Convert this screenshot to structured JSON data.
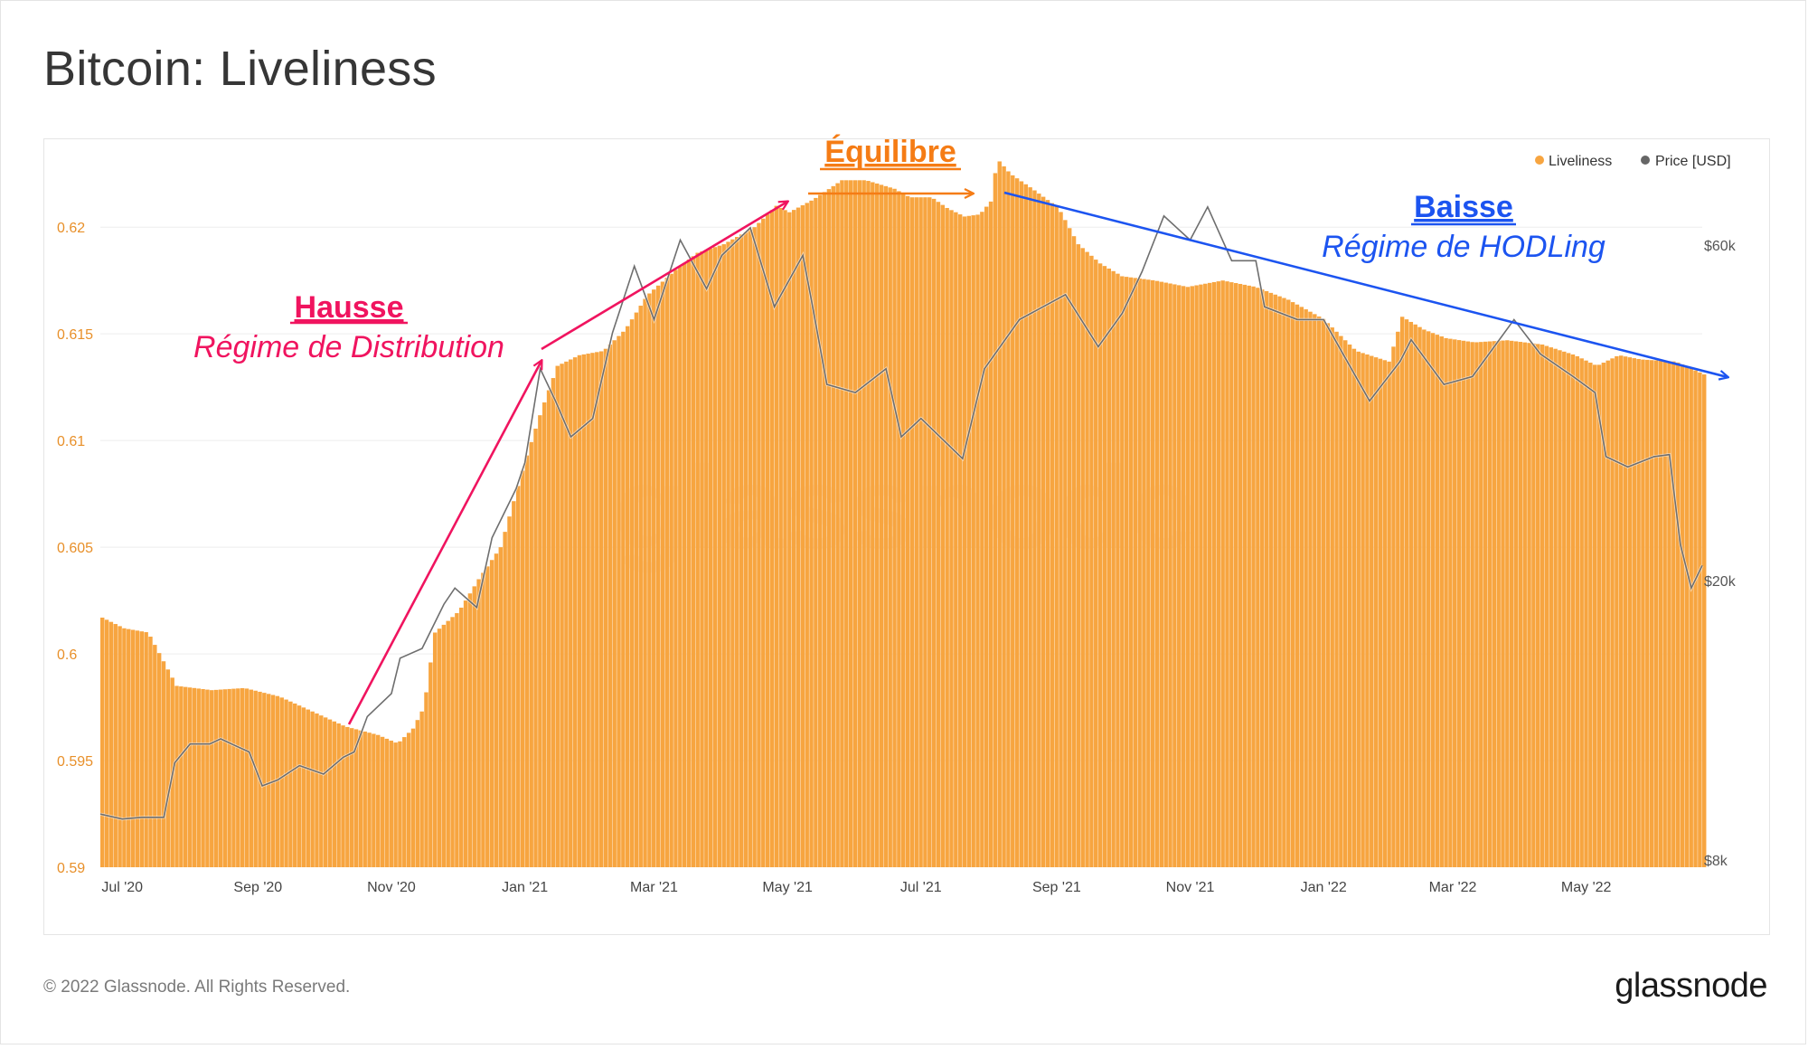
{
  "title": "Bitcoin: Liveliness",
  "footer": {
    "copyright": "© 2022 Glassnode. All Rights Reserved.",
    "logo": "glassnode"
  },
  "watermark": "glassnode",
  "chart_data": {
    "type": "bar",
    "title": "Bitcoin: Liveliness",
    "x_axis": {
      "start": "2020-06-21",
      "end": "2022-06-23",
      "tick_labels": [
        "Jul '20",
        "Sep '20",
        "Nov '20",
        "Jan '21",
        "Mar '21",
        "May '21",
        "Jul '21",
        "Sep '21",
        "Nov '21",
        "Jan '22",
        "Mar '22",
        "May '22"
      ]
    },
    "y_left": {
      "range": [
        0.59,
        0.6234
      ],
      "ticks": [
        0.59,
        0.595,
        0.6,
        0.605,
        0.61,
        0.615,
        0.62
      ],
      "tick_labels": [
        "0.59",
        "0.595",
        "0.6",
        "0.605",
        "0.61",
        "0.615",
        "0.62"
      ],
      "color": "#e8902a"
    },
    "y_right": {
      "scale": "log",
      "ticks": [
        8000,
        20000,
        60000
      ],
      "tick_labels": [
        "$8k",
        "$20k",
        "$60k"
      ]
    },
    "legend": {
      "position": "top-right",
      "items": [
        {
          "label": "Liveliness",
          "color": "#f7a540"
        },
        {
          "label": "Price [USD]",
          "color": "#666666"
        }
      ]
    },
    "series": [
      {
        "name": "Liveliness",
        "kind": "bar",
        "color": "#f7a540",
        "points": [
          [
            "2020-06-21",
            0.6017
          ],
          [
            "2020-07-01",
            0.6012
          ],
          [
            "2020-07-12",
            0.601
          ],
          [
            "2020-07-25",
            0.5985
          ],
          [
            "2020-08-10",
            0.5983
          ],
          [
            "2020-08-25",
            0.5984
          ],
          [
            "2020-09-10",
            0.598
          ],
          [
            "2020-09-25",
            0.5973
          ],
          [
            "2020-10-10",
            0.5966
          ],
          [
            "2020-10-25",
            0.5962
          ],
          [
            "2020-11-03",
            0.5958
          ],
          [
            "2020-11-10",
            0.5965
          ],
          [
            "2020-11-15",
            0.5975
          ],
          [
            "2020-11-20",
            0.601
          ],
          [
            "2020-12-01",
            0.602
          ],
          [
            "2020-12-10",
            0.6035
          ],
          [
            "2020-12-20",
            0.605
          ],
          [
            "2020-12-25",
            0.6068
          ],
          [
            "2021-01-01",
            0.6093
          ],
          [
            "2021-01-08",
            0.6115
          ],
          [
            "2021-01-15",
            0.6135
          ],
          [
            "2021-01-25",
            0.614
          ],
          [
            "2021-02-05",
            0.6142
          ],
          [
            "2021-02-15",
            0.6152
          ],
          [
            "2021-02-25",
            0.6168
          ],
          [
            "2021-03-10",
            0.618
          ],
          [
            "2021-03-20",
            0.6188
          ],
          [
            "2021-04-01",
            0.6192
          ],
          [
            "2021-04-15",
            0.62
          ],
          [
            "2021-04-25",
            0.621
          ],
          [
            "2021-05-01",
            0.6207
          ],
          [
            "2021-05-12",
            0.6213
          ],
          [
            "2021-05-25",
            0.6222
          ],
          [
            "2021-06-05",
            0.6222
          ],
          [
            "2021-06-18",
            0.6218
          ],
          [
            "2021-06-25",
            0.6214
          ],
          [
            "2021-07-05",
            0.6214
          ],
          [
            "2021-07-12",
            0.6209
          ],
          [
            "2021-07-20",
            0.6205
          ],
          [
            "2021-07-27",
            0.6206
          ],
          [
            "2021-08-01",
            0.6212
          ],
          [
            "2021-08-04",
            0.6232
          ],
          [
            "2021-08-10",
            0.6225
          ],
          [
            "2021-08-20",
            0.6218
          ],
          [
            "2021-09-01",
            0.6209
          ],
          [
            "2021-09-10",
            0.6192
          ],
          [
            "2021-09-20",
            0.6183
          ],
          [
            "2021-09-30",
            0.6177
          ],
          [
            "2021-10-15",
            0.6175
          ],
          [
            "2021-10-30",
            0.6172
          ],
          [
            "2021-11-15",
            0.6175
          ],
          [
            "2021-11-30",
            0.6172
          ],
          [
            "2021-12-15",
            0.6166
          ],
          [
            "2021-12-31",
            0.6157
          ],
          [
            "2022-01-15",
            0.6142
          ],
          [
            "2022-01-30",
            0.6137
          ],
          [
            "2022-02-05",
            0.6158
          ],
          [
            "2022-02-15",
            0.6152
          ],
          [
            "2022-02-25",
            0.6148
          ],
          [
            "2022-03-10",
            0.6146
          ],
          [
            "2022-03-25",
            0.6147
          ],
          [
            "2022-04-10",
            0.6145
          ],
          [
            "2022-04-25",
            0.614
          ],
          [
            "2022-05-05",
            0.6135
          ],
          [
            "2022-05-15",
            0.614
          ],
          [
            "2022-05-25",
            0.6138
          ],
          [
            "2022-06-10",
            0.6137
          ],
          [
            "2022-06-23",
            0.6131
          ]
        ]
      },
      {
        "name": "Price [USD]",
        "kind": "line",
        "color": "#6e6e6e",
        "points": [
          [
            "2020-06-21",
            9300
          ],
          [
            "2020-07-01",
            9150
          ],
          [
            "2020-07-10",
            9200
          ],
          [
            "2020-07-20",
            9200
          ],
          [
            "2020-07-25",
            11000
          ],
          [
            "2020-08-01",
            11700
          ],
          [
            "2020-08-10",
            11700
          ],
          [
            "2020-08-15",
            11900
          ],
          [
            "2020-08-20",
            11700
          ],
          [
            "2020-08-28",
            11400
          ],
          [
            "2020-09-03",
            10200
          ],
          [
            "2020-09-10",
            10400
          ],
          [
            "2020-09-20",
            10900
          ],
          [
            "2020-10-01",
            10600
          ],
          [
            "2020-10-10",
            11200
          ],
          [
            "2020-10-15",
            11400
          ],
          [
            "2020-10-21",
            12800
          ],
          [
            "2020-11-01",
            13800
          ],
          [
            "2020-11-05",
            15500
          ],
          [
            "2020-11-15",
            16000
          ],
          [
            "2020-11-25",
            18500
          ],
          [
            "2020-11-30",
            19500
          ],
          [
            "2020-12-10",
            18300
          ],
          [
            "2020-12-17",
            23000
          ],
          [
            "2020-12-28",
            27000
          ],
          [
            "2021-01-01",
            29400
          ],
          [
            "2021-01-08",
            40000
          ],
          [
            "2021-01-15",
            36000
          ],
          [
            "2021-01-22",
            32000
          ],
          [
            "2021-02-01",
            34000
          ],
          [
            "2021-02-10",
            45000
          ],
          [
            "2021-02-20",
            56000
          ],
          [
            "2021-03-01",
            47000
          ],
          [
            "2021-03-13",
            61000
          ],
          [
            "2021-03-25",
            52000
          ],
          [
            "2021-04-01",
            58000
          ],
          [
            "2021-04-14",
            63500
          ],
          [
            "2021-04-25",
            49000
          ],
          [
            "2021-05-08",
            58000
          ],
          [
            "2021-05-12",
            50000
          ],
          [
            "2021-05-19",
            38000
          ],
          [
            "2021-06-01",
            37000
          ],
          [
            "2021-06-15",
            40000
          ],
          [
            "2021-06-22",
            32000
          ],
          [
            "2021-07-01",
            34000
          ],
          [
            "2021-07-20",
            29800
          ],
          [
            "2021-07-30",
            40000
          ],
          [
            "2021-08-15",
            47000
          ],
          [
            "2021-09-05",
            51000
          ],
          [
            "2021-09-20",
            43000
          ],
          [
            "2021-10-01",
            48000
          ],
          [
            "2021-10-10",
            55000
          ],
          [
            "2021-10-20",
            66000
          ],
          [
            "2021-11-01",
            61000
          ],
          [
            "2021-11-09",
            68000
          ],
          [
            "2021-11-20",
            57000
          ],
          [
            "2021-12-01",
            57000
          ],
          [
            "2021-12-05",
            49000
          ],
          [
            "2021-12-20",
            47000
          ],
          [
            "2022-01-01",
            47000
          ],
          [
            "2022-01-22",
            36000
          ],
          [
            "2022-02-05",
            41000
          ],
          [
            "2022-02-10",
            44000
          ],
          [
            "2022-02-25",
            38000
          ],
          [
            "2022-03-10",
            39000
          ],
          [
            "2022-03-29",
            47000
          ],
          [
            "2022-04-10",
            42000
          ],
          [
            "2022-04-25",
            39000
          ],
          [
            "2022-05-05",
            37000
          ],
          [
            "2022-05-10",
            30000
          ],
          [
            "2022-05-20",
            29000
          ],
          [
            "2022-06-01",
            30000
          ],
          [
            "2022-06-08",
            30200
          ],
          [
            "2022-06-13",
            22500
          ],
          [
            "2022-06-18",
            19500
          ],
          [
            "2022-06-23",
            21000
          ]
        ]
      }
    ],
    "annotations": [
      {
        "heading": "Hausse",
        "subtitle": "Régime de Distribution",
        "color": "#f0145f"
      },
      {
        "heading": "Équilibre",
        "subtitle": "",
        "color": "#f57c15"
      },
      {
        "heading": "Baisse",
        "subtitle": "Régime de HODLing",
        "color": "#1c54f0"
      }
    ]
  }
}
